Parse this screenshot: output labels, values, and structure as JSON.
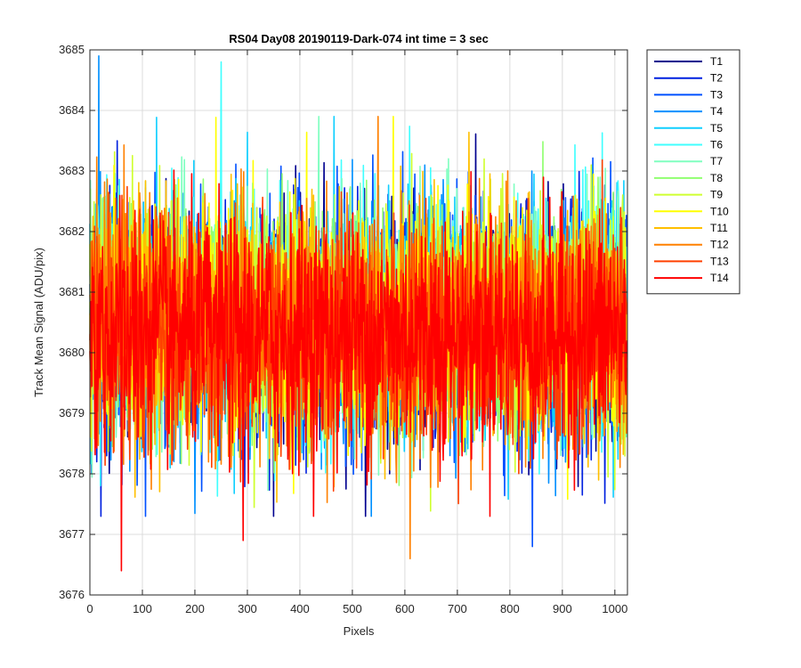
{
  "chart_data": {
    "type": "line",
    "title": "RS04 Day08 20190119-Dark-074 int time = 3 sec",
    "xlabel": "Pixels",
    "ylabel": "Track Mean Signal (ADU/pix)",
    "xlim": [
      0,
      1024
    ],
    "ylim": [
      3676,
      3685
    ],
    "xticks": [
      "0",
      "100",
      "200",
      "300",
      "400",
      "500",
      "600",
      "700",
      "800",
      "900",
      "1000"
    ],
    "yticks": [
      "3676",
      "3677",
      "3678",
      "3679",
      "3680",
      "3681",
      "3682",
      "3683",
      "3684",
      "3685"
    ],
    "grid": true,
    "legend_position": "outside-top-right",
    "noise_model": {
      "mean": 3680.5,
      "typical_range": [
        3678.5,
        3682.8
      ],
      "n_points": 1024
    },
    "series": [
      {
        "name": "T1",
        "color": "#00008f",
        "center": 3680.5
      },
      {
        "name": "T2",
        "color": "#0020df",
        "center": 3680.5
      },
      {
        "name": "T3",
        "color": "#0050ff",
        "center": 3680.5
      },
      {
        "name": "T4",
        "color": "#0090ff",
        "center": 3680.5
      },
      {
        "name": "T5",
        "color": "#10cfff",
        "center": 3680.5
      },
      {
        "name": "T6",
        "color": "#40ffff",
        "center": 3680.6
      },
      {
        "name": "T7",
        "color": "#80ffc0",
        "center": 3680.6
      },
      {
        "name": "T8",
        "color": "#90ff70",
        "center": 3680.6
      },
      {
        "name": "T9",
        "color": "#cfff30",
        "center": 3680.6
      },
      {
        "name": "T10",
        "color": "#ffff00",
        "center": 3680.5
      },
      {
        "name": "T11",
        "color": "#ffbf00",
        "center": 3680.5
      },
      {
        "name": "T12",
        "color": "#ff8000",
        "center": 3680.4
      },
      {
        "name": "T13",
        "color": "#ff4000",
        "center": 3680.3
      },
      {
        "name": "T14",
        "color": "#ff0000",
        "center": 3680.3
      }
    ],
    "notable_extremes": [
      {
        "series": "T4",
        "x": 17,
        "y": 3684.9
      },
      {
        "series": "T6",
        "x": 250,
        "y": 3684.8
      },
      {
        "series": "T14",
        "x": 60,
        "y": 3676.4
      },
      {
        "series": "T12",
        "x": 610,
        "y": 3676.6
      },
      {
        "series": "T14",
        "x": 292,
        "y": 3676.9
      },
      {
        "series": "T3",
        "x": 843,
        "y": 3676.8
      }
    ]
  }
}
